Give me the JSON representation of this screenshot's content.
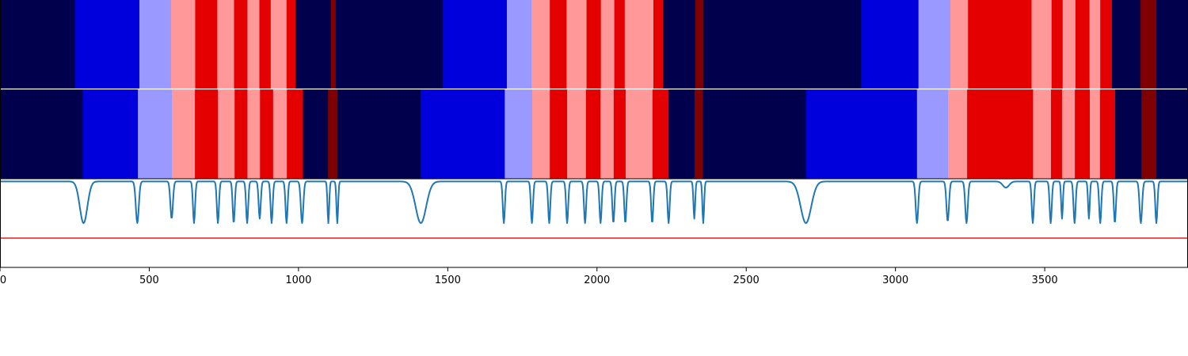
{
  "colors": {
    "c0": "#00004c",
    "c1": "#0000dd",
    "c2": "#9999ff",
    "c3": "#ff9999",
    "c4": "#e50000",
    "c5": "#7f0000",
    "line": "#1f77b4",
    "threshold": "#e02020",
    "axis": "#000000",
    "background": "#ffffff"
  },
  "chart_data": {
    "type": "heatmap",
    "title": "",
    "xlabel": "",
    "ylabel": "",
    "xlim": [
      0,
      3980
    ],
    "xticks": [
      0,
      500,
      1000,
      1500,
      2000,
      2500,
      3000,
      3500
    ],
    "xtick_labels": [
      "0",
      "500",
      "1000",
      "1500",
      "2000",
      "2500",
      "3000",
      "3500"
    ],
    "grid": false,
    "segment_rows": [
      {
        "segments": [
          [
            0,
            251,
            "c0"
          ],
          [
            251,
            467,
            "c1"
          ],
          [
            467,
            573,
            "c2"
          ],
          [
            573,
            654,
            "c3"
          ],
          [
            654,
            728,
            "c4"
          ],
          [
            728,
            784,
            "c3"
          ],
          [
            784,
            829,
            "c4"
          ],
          [
            829,
            869,
            "c3"
          ],
          [
            869,
            907,
            "c4"
          ],
          [
            907,
            960,
            "c3"
          ],
          [
            960,
            990,
            "c4"
          ],
          [
            990,
            1109,
            "c0"
          ],
          [
            1109,
            1125,
            "c5"
          ],
          [
            1125,
            1483,
            "c0"
          ],
          [
            1483,
            1698,
            "c1"
          ],
          [
            1698,
            1781,
            "c2"
          ],
          [
            1781,
            1842,
            "c3"
          ],
          [
            1842,
            1898,
            "c4"
          ],
          [
            1898,
            1965,
            "c3"
          ],
          [
            1965,
            2013,
            "c4"
          ],
          [
            2013,
            2058,
            "c3"
          ],
          [
            2058,
            2093,
            "c4"
          ],
          [
            2093,
            2189,
            "c3"
          ],
          [
            2189,
            2221,
            "c4"
          ],
          [
            2221,
            2330,
            "c0"
          ],
          [
            2330,
            2357,
            "c5"
          ],
          [
            2357,
            2885,
            "c0"
          ],
          [
            2885,
            3077,
            "c1"
          ],
          [
            3077,
            3184,
            "c2"
          ],
          [
            3184,
            3243,
            "c3"
          ],
          [
            3243,
            3456,
            "c4"
          ],
          [
            3456,
            3523,
            "c3"
          ],
          [
            3523,
            3560,
            "c4"
          ],
          [
            3560,
            3603,
            "c3"
          ],
          [
            3603,
            3650,
            "c4"
          ],
          [
            3650,
            3686,
            "c3"
          ],
          [
            3686,
            3725,
            "c4"
          ],
          [
            3725,
            3821,
            "c0"
          ],
          [
            3821,
            3874,
            "c5"
          ],
          [
            3874,
            3980,
            "c0"
          ]
        ]
      },
      {
        "segments": [
          [
            0,
            277,
            "c0"
          ],
          [
            277,
            462,
            "c1"
          ],
          [
            462,
            576,
            "c2"
          ],
          [
            576,
            653,
            "c3"
          ],
          [
            653,
            730,
            "c4"
          ],
          [
            730,
            786,
            "c3"
          ],
          [
            786,
            829,
            "c4"
          ],
          [
            829,
            871,
            "c3"
          ],
          [
            871,
            915,
            "c4"
          ],
          [
            915,
            961,
            "c3"
          ],
          [
            961,
            1015,
            "c4"
          ],
          [
            1015,
            1099,
            "c0"
          ],
          [
            1099,
            1131,
            "c5"
          ],
          [
            1131,
            1409,
            "c0"
          ],
          [
            1409,
            1691,
            "c1"
          ],
          [
            1691,
            1783,
            "c2"
          ],
          [
            1783,
            1842,
            "c3"
          ],
          [
            1842,
            1900,
            "c4"
          ],
          [
            1900,
            1963,
            "c3"
          ],
          [
            1963,
            2012,
            "c4"
          ],
          [
            2012,
            2056,
            "c3"
          ],
          [
            2056,
            2096,
            "c4"
          ],
          [
            2096,
            2186,
            "c3"
          ],
          [
            2186,
            2240,
            "c4"
          ],
          [
            2240,
            2327,
            "c0"
          ],
          [
            2327,
            2355,
            "c5"
          ],
          [
            2355,
            2700,
            "c0"
          ],
          [
            2700,
            3072,
            "c1"
          ],
          [
            3072,
            3176,
            "c2"
          ],
          [
            3176,
            3240,
            "c3"
          ],
          [
            3240,
            3461,
            "c4"
          ],
          [
            3461,
            3521,
            "c3"
          ],
          [
            3521,
            3558,
            "c4"
          ],
          [
            3558,
            3601,
            "c3"
          ],
          [
            3601,
            3651,
            "c4"
          ],
          [
            3651,
            3685,
            "c3"
          ],
          [
            3685,
            3736,
            "c4"
          ],
          [
            3736,
            3824,
            "c0"
          ],
          [
            3824,
            3874,
            "c5"
          ],
          [
            3874,
            3980,
            "c0"
          ]
        ]
      }
    ],
    "line_series": {
      "ylim": [
        0,
        1
      ],
      "baseline": 0.97,
      "threshold": 0.33,
      "dips": [
        [
          280,
          0.5,
          18
        ],
        [
          460,
          0.5,
          7
        ],
        [
          575,
          0.55,
          6
        ],
        [
          650,
          0.5,
          5
        ],
        [
          730,
          0.5,
          5
        ],
        [
          783,
          0.5,
          5
        ],
        [
          828,
          0.5,
          5
        ],
        [
          870,
          0.55,
          5
        ],
        [
          910,
          0.5,
          5
        ],
        [
          960,
          0.5,
          5
        ],
        [
          1012,
          0.5,
          6
        ],
        [
          1100,
          0.5,
          4
        ],
        [
          1130,
          0.5,
          4
        ],
        [
          1410,
          0.5,
          25
        ],
        [
          1688,
          0.5,
          5
        ],
        [
          1782,
          0.5,
          5
        ],
        [
          1840,
          0.5,
          5
        ],
        [
          1900,
          0.5,
          5
        ],
        [
          1960,
          0.5,
          5
        ],
        [
          2012,
          0.5,
          5
        ],
        [
          2055,
          0.5,
          5
        ],
        [
          2095,
          0.5,
          5
        ],
        [
          2185,
          0.5,
          5
        ],
        [
          2240,
          0.5,
          5
        ],
        [
          2326,
          0.55,
          4
        ],
        [
          2356,
          0.5,
          4
        ],
        [
          2700,
          0.5,
          25
        ],
        [
          3072,
          0.5,
          6
        ],
        [
          3175,
          0.52,
          6
        ],
        [
          3238,
          0.5,
          6
        ],
        [
          3370,
          0.9,
          15
        ],
        [
          3460,
          0.5,
          5
        ],
        [
          3520,
          0.5,
          5
        ],
        [
          3558,
          0.55,
          4
        ],
        [
          3600,
          0.5,
          5
        ],
        [
          3648,
          0.55,
          4
        ],
        [
          3686,
          0.5,
          5
        ],
        [
          3735,
          0.5,
          5
        ],
        [
          3822,
          0.5,
          6
        ],
        [
          3874,
          0.5,
          5
        ]
      ]
    }
  }
}
